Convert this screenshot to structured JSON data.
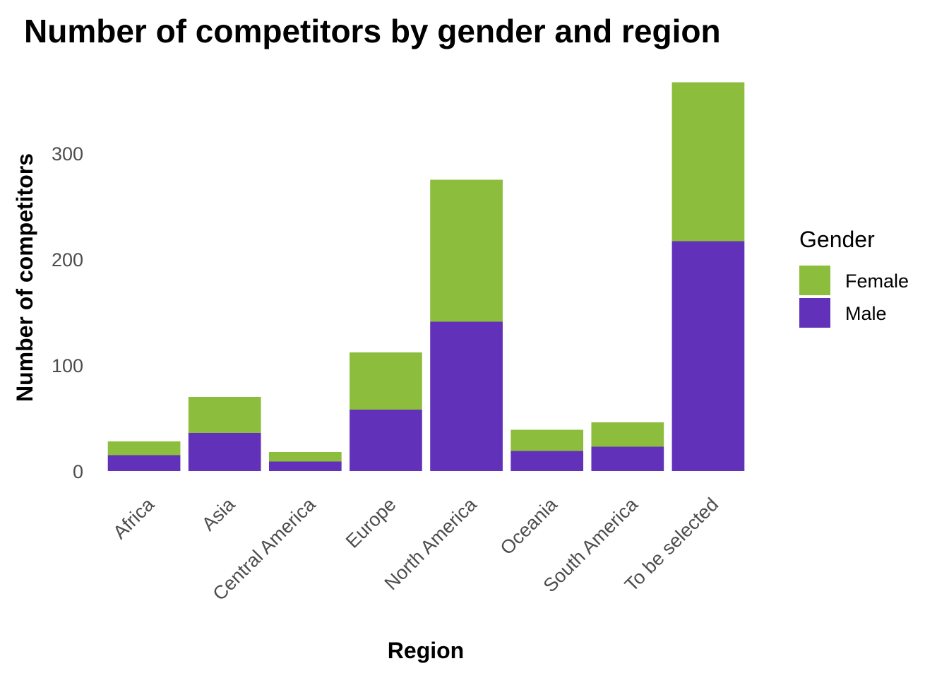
{
  "chart_data": {
    "type": "bar",
    "stacked": true,
    "title": "Number of competitors by gender and region",
    "xlabel": "Region",
    "ylabel": "Number of competitors",
    "categories": [
      "Africa",
      "Asia",
      "Central America",
      "Europe",
      "North America",
      "Oceania",
      "South America",
      "To be selected"
    ],
    "series": [
      {
        "name": "Male",
        "color": "#6231b9",
        "values": [
          15,
          36,
          9,
          58,
          141,
          19,
          23,
          217
        ]
      },
      {
        "name": "Female",
        "color": "#8cbd3c",
        "values": [
          13,
          34,
          9,
          54,
          134,
          20,
          23,
          150
        ]
      }
    ],
    "ylim": [
      0,
      367
    ],
    "yticks": [
      0,
      100,
      200,
      300
    ],
    "grid": false,
    "legend": {
      "title": "Gender",
      "position": "right",
      "order": [
        "Female",
        "Male"
      ]
    }
  }
}
